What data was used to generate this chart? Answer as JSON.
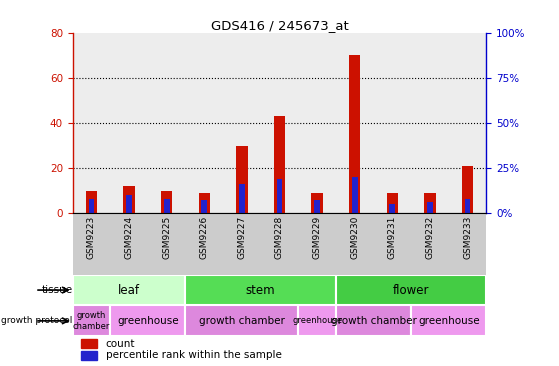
{
  "title": "GDS416 / 245673_at",
  "samples": [
    "GSM9223",
    "GSM9224",
    "GSM9225",
    "GSM9226",
    "GSM9227",
    "GSM9228",
    "GSM9229",
    "GSM9230",
    "GSM9231",
    "GSM9232",
    "GSM9233"
  ],
  "count_values": [
    10,
    12,
    10,
    9,
    30,
    43,
    9,
    70,
    9,
    9,
    21
  ],
  "percentile_values": [
    8,
    10,
    8,
    7,
    16,
    19,
    7,
    20,
    5,
    6,
    8
  ],
  "left_ylim": [
    0,
    80
  ],
  "right_ylim": [
    0,
    100
  ],
  "left_yticks": [
    0,
    20,
    40,
    60,
    80
  ],
  "right_yticks": [
    0,
    25,
    50,
    75,
    100
  ],
  "count_color": "#cc1100",
  "percentile_color": "#2222cc",
  "tissue_groups": [
    {
      "label": "leaf",
      "start": 0,
      "end": 2,
      "color": "#ccffcc"
    },
    {
      "label": "stem",
      "start": 3,
      "end": 6,
      "color": "#55dd55"
    },
    {
      "label": "flower",
      "start": 7,
      "end": 10,
      "color": "#44cc44"
    }
  ],
  "protocol_groups": [
    {
      "label": "growth\nchamber",
      "start": 0,
      "end": 0,
      "color": "#dd88dd"
    },
    {
      "label": "greenhouse",
      "start": 1,
      "end": 2,
      "color": "#ee99ee"
    },
    {
      "label": "growth chamber",
      "start": 3,
      "end": 5,
      "color": "#dd88dd"
    },
    {
      "label": "greenhouse",
      "start": 6,
      "end": 6,
      "color": "#ee99ee"
    },
    {
      "label": "growth chamber",
      "start": 7,
      "end": 8,
      "color": "#dd88dd"
    },
    {
      "label": "greenhouse",
      "start": 9,
      "end": 10,
      "color": "#ee99ee"
    }
  ],
  "sample_col_color": "#cccccc",
  "left_axis_color": "#cc1100",
  "right_axis_color": "#0000cc",
  "plot_bg_color": "#ffffff"
}
